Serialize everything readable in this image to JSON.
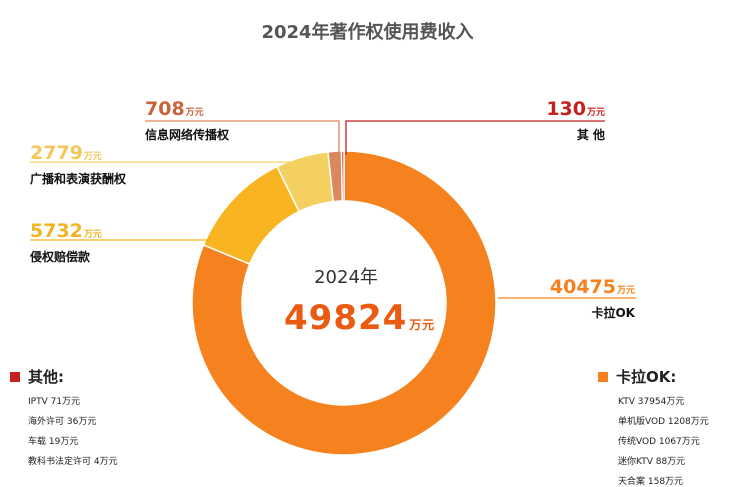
{
  "title": "2024年著作权使用费收入",
  "center": {
    "year": "2024年",
    "total": "49824",
    "unit": "万元"
  },
  "colors": {
    "karaoke": "#f5821f",
    "other": "#c51f1f"
  },
  "chart_data": {
    "type": "pie",
    "title": "2024年著作权使用费收入",
    "unit": "万元",
    "slices": [
      {
        "name": "卡拉OK",
        "value": 40475,
        "color": "#f5821f"
      },
      {
        "name": "侵权赔偿款",
        "value": 5732,
        "color": "#f8b521"
      },
      {
        "name": "广播和表演获酬权",
        "value": 2779,
        "color": "#f4d060"
      },
      {
        "name": "信息网络传播权",
        "value": 708,
        "color": "#d9895c"
      },
      {
        "name": "其 他",
        "value": 130,
        "color": "#c51f1f"
      }
    ]
  },
  "labels": [
    {
      "value": "708",
      "unit": "万元",
      "name": "信息网络传播权",
      "color": "#c8643c"
    },
    {
      "value": "2779",
      "unit": "万元",
      "name": "广播和表演获酬权",
      "color": "#f4c75a"
    },
    {
      "value": "5732",
      "unit": "万元",
      "name": "侵权赔偿款",
      "color": "#f3b325"
    },
    {
      "value": "130",
      "unit": "万元",
      "name": "其 他",
      "color": "#c51f1f"
    },
    {
      "value": "40475",
      "unit": "万元",
      "name": "卡拉OK",
      "color": "#f5821f"
    }
  ],
  "other_breakdown": {
    "title": "其他",
    "items": [
      "IPTV 71万元",
      "海外许可 36万元",
      "车载 19万元",
      "教科书法定许可 4万元"
    ]
  },
  "karaoke_breakdown": {
    "title": "卡拉OK",
    "items": [
      "KTV 37954万元",
      "单机版VOD 1208万元",
      "传统VOD 1067万元",
      "迷你KTV 88万元",
      "天合案 158万元"
    ]
  }
}
